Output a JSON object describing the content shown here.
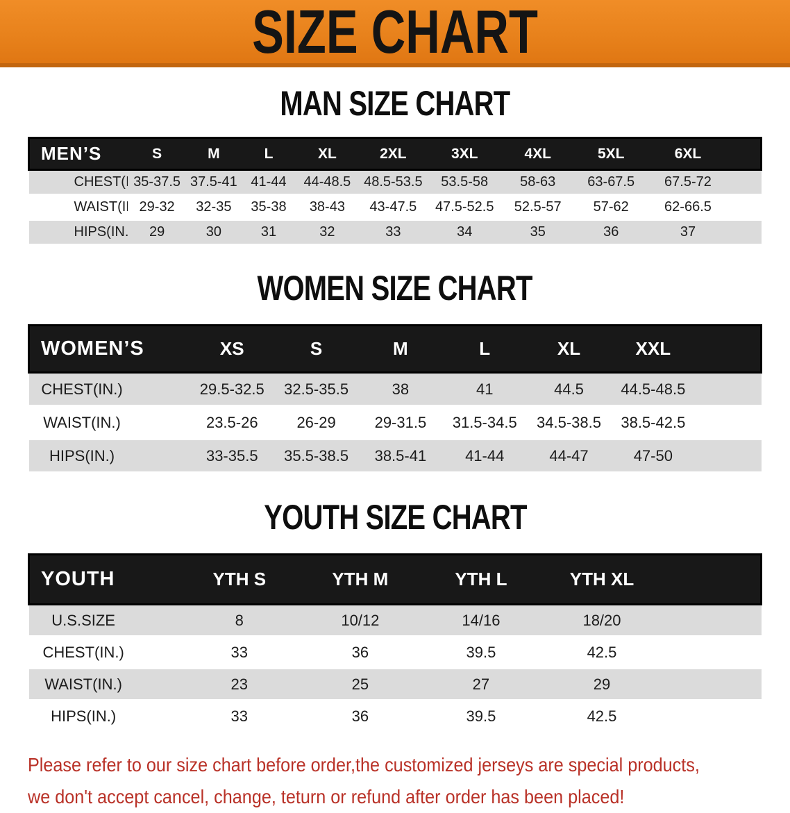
{
  "banner": {
    "title": "SIZE CHART",
    "background_color": "#E8821C",
    "text_color": "#141414"
  },
  "chart_data": [
    {
      "type": "table",
      "title": "MAN SIZE CHART",
      "corner_label": "MEN’S",
      "columns": [
        "S",
        "M",
        "L",
        "XL",
        "2XL",
        "3XL",
        "4XL",
        "5XL",
        "6XL"
      ],
      "row_labels": [
        "CHEST(IN.)",
        "WAIST(IN.)",
        "HIPS(IN.)"
      ],
      "rows": [
        [
          "35-37.5",
          "37.5-41",
          "41-44",
          "44-48.5",
          "48.5-53.5",
          "53.5-58",
          "58-63",
          "63-67.5",
          "67.5-72"
        ],
        [
          "29-32",
          "32-35",
          "35-38",
          "38-43",
          "43-47.5",
          "47.5-52.5",
          "52.5-57",
          "57-62",
          "62-66.5"
        ],
        [
          "29",
          "30",
          "31",
          "32",
          "33",
          "34",
          "35",
          "36",
          "37"
        ]
      ]
    },
    {
      "type": "table",
      "title": "WOMEN SIZE CHART",
      "corner_label": "WOMEN’S",
      "columns": [
        "XS",
        "S",
        "M",
        "L",
        "XL",
        "XXL"
      ],
      "row_labels": [
        "CHEST(IN.)",
        "WAIST(IN.)",
        "HIPS(IN.)"
      ],
      "rows": [
        [
          "29.5-32.5",
          "32.5-35.5",
          "38",
          "41",
          "44.5",
          "44.5-48.5"
        ],
        [
          "23.5-26",
          "26-29",
          "29-31.5",
          "31.5-34.5",
          "34.5-38.5",
          "38.5-42.5"
        ],
        [
          "33-35.5",
          "35.5-38.5",
          "38.5-41",
          "41-44",
          "44-47",
          "47-50"
        ]
      ]
    },
    {
      "type": "table",
      "title": "YOUTH SIZE CHART",
      "corner_label": "YOUTH",
      "columns": [
        "YTH S",
        "YTH M",
        "YTH L",
        "YTH XL"
      ],
      "row_labels": [
        "U.S.SIZE",
        "CHEST(IN.)",
        "WAIST(IN.)",
        "HIPS(IN.)"
      ],
      "rows": [
        [
          "8",
          "10/12",
          "14/16",
          "18/20"
        ],
        [
          "33",
          "36",
          "39.5",
          "42.5"
        ],
        [
          "23",
          "25",
          "27",
          "29"
        ],
        [
          "33",
          "36",
          "39.5",
          "42.5"
        ]
      ]
    }
  ],
  "table_style": {
    "header_background": "#181818",
    "header_text_color": "#FFFFFF",
    "odd_row_background": "#DBDBDB",
    "even_row_background": "#FFFFFF"
  },
  "disclaimer": {
    "line1": "Please refer to our size chart before order,the customized jerseys are special products,",
    "line2": "we don't accept cancel, change, teturn or refund after order has been placed!",
    "color": "#B93127"
  }
}
